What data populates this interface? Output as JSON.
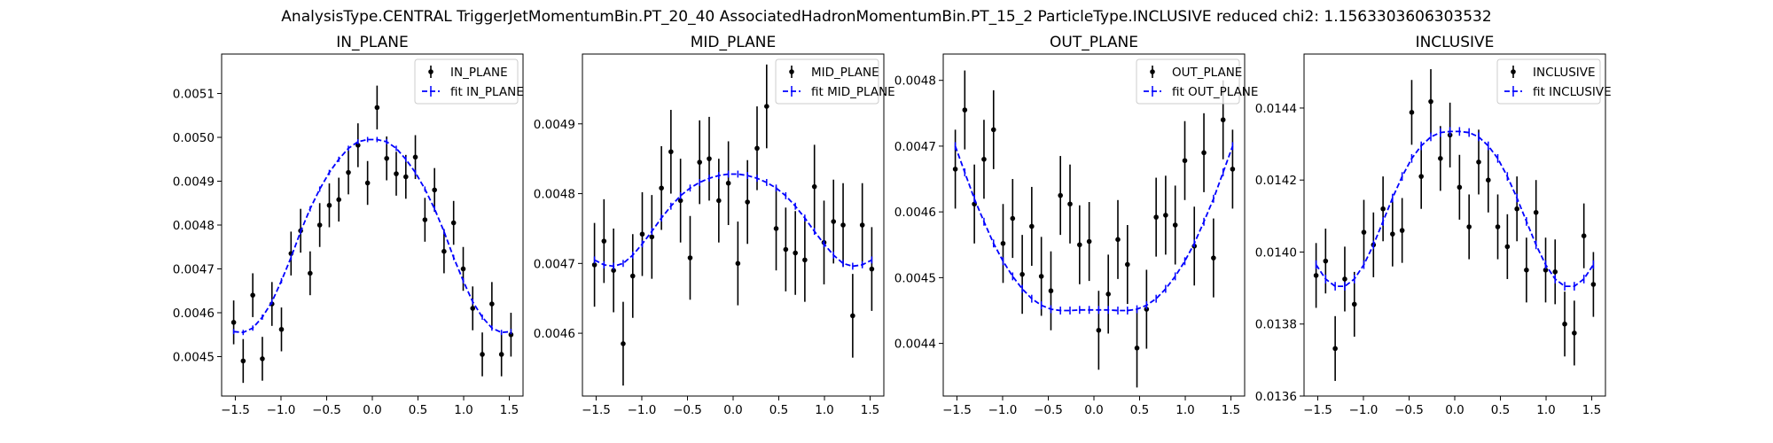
{
  "figure_title": "AnalysisType.CENTRAL TriggerJetMomentumBin.PT_20_40 AssociatedHadronMomentumBin.PT_15_2 ParticleType.INCLUSIVE reduced chi2: 1.1563303606303532",
  "colors": {
    "data": "#000000",
    "fit": "#0000ff"
  },
  "chart_data": [
    {
      "type": "scatter",
      "title": "IN_PLANE",
      "xlabel": "",
      "ylabel": "",
      "xlim": [
        -1.65,
        1.65
      ],
      "ylim": [
        0.00441,
        0.00519
      ],
      "xticks": [
        -1.5,
        -1.0,
        -0.5,
        0.0,
        0.5,
        1.0,
        1.5
      ],
      "xtick_labels": [
        "−1.5",
        "−1.0",
        "−0.5",
        "0.0",
        "0.5",
        "1.0",
        "1.5"
      ],
      "yticks": [
        0.0045,
        0.0046,
        0.0047,
        0.0048,
        0.0049,
        0.005,
        0.0051
      ],
      "ytick_labels": [
        "0.0045",
        "0.0046",
        "0.0047",
        "0.0048",
        "0.0049",
        "0.0050",
        "0.0051"
      ],
      "legend": "top-right",
      "series": [
        {
          "name": "IN_PLANE",
          "kind": "data",
          "x": [
            -1.518,
            -1.414,
            -1.309,
            -1.204,
            -1.099,
            -0.995,
            -0.89,
            -0.785,
            -0.681,
            -0.576,
            -0.471,
            -0.367,
            -0.262,
            -0.157,
            -0.052,
            0.052,
            0.157,
            0.262,
            0.367,
            0.471,
            0.576,
            0.681,
            0.785,
            0.89,
            0.995,
            1.099,
            1.204,
            1.309,
            1.414,
            1.518
          ],
          "y": [
            0.004578,
            0.00449,
            0.00464,
            0.004495,
            0.00462,
            0.004562,
            0.004735,
            0.004787,
            0.00469,
            0.0048,
            0.004845,
            0.004858,
            0.00492,
            0.004982,
            0.004896,
            0.005068,
            0.004952,
            0.004917,
            0.00491,
            0.004955,
            0.004812,
            0.00488,
            0.00474,
            0.004805,
            0.0047,
            0.00461,
            0.004505,
            0.00462,
            0.004505,
            0.00455
          ],
          "yerr": [
            5e-05,
            5e-05,
            5e-05,
            5e-05,
            5e-05,
            5e-05,
            5e-05,
            5e-05,
            5e-05,
            5e-05,
            5e-05,
            5e-05,
            5e-05,
            5e-05,
            5e-05,
            5e-05,
            5e-05,
            5e-05,
            5e-05,
            5e-05,
            5e-05,
            5e-05,
            5e-05,
            5e-05,
            5e-05,
            5e-05,
            5e-05,
            5e-05,
            5e-05,
            5e-05
          ]
        },
        {
          "name": "fit IN_PLANE",
          "kind": "fit",
          "x": [
            -1.518,
            -1.414,
            -1.309,
            -1.204,
            -1.099,
            -0.995,
            -0.89,
            -0.785,
            -0.681,
            -0.576,
            -0.471,
            -0.367,
            -0.262,
            -0.157,
            -0.052,
            0.052,
            0.157,
            0.262,
            0.367,
            0.471,
            0.576,
            0.681,
            0.785,
            0.89,
            0.995,
            1.099,
            1.204,
            1.309,
            1.414,
            1.518
          ],
          "y": [
            0.004557,
            0.004555,
            0.004565,
            0.00459,
            0.004625,
            0.004673,
            0.004726,
            0.004785,
            0.004837,
            0.004882,
            0.00492,
            0.00495,
            0.004975,
            0.00499,
            0.004995,
            0.004995,
            0.00499,
            0.004975,
            0.00495,
            0.00492,
            0.004882,
            0.004837,
            0.004785,
            0.004726,
            0.004673,
            0.004625,
            0.00459,
            0.004565,
            0.004555,
            0.004557
          ],
          "yerr": [
            6e-06,
            6e-06,
            6e-06,
            6e-06,
            6e-06,
            6e-06,
            6e-06,
            6e-06,
            6e-06,
            6e-06,
            6e-06,
            6e-06,
            6e-06,
            6e-06,
            6e-06,
            6e-06,
            6e-06,
            6e-06,
            6e-06,
            6e-06,
            6e-06,
            6e-06,
            6e-06,
            6e-06,
            6e-06,
            6e-06,
            6e-06,
            6e-06,
            6e-06,
            6e-06
          ]
        }
      ]
    },
    {
      "type": "scatter",
      "title": "MID_PLANE",
      "xlabel": "",
      "ylabel": "",
      "xlim": [
        -1.65,
        1.65
      ],
      "ylim": [
        0.00451,
        0.005
      ],
      "xticks": [
        -1.5,
        -1.0,
        -0.5,
        0.0,
        0.5,
        1.0,
        1.5
      ],
      "xtick_labels": [
        "−1.5",
        "−1.0",
        "−0.5",
        "0.0",
        "0.5",
        "1.0",
        "1.5"
      ],
      "yticks": [
        0.0046,
        0.0047,
        0.0048,
        0.0049
      ],
      "ytick_labels": [
        "0.0046",
        "0.0047",
        "0.0048",
        "0.0049"
      ],
      "legend": "top-right",
      "series": [
        {
          "name": "MID_PLANE",
          "kind": "data",
          "x": [
            -1.518,
            -1.414,
            -1.309,
            -1.204,
            -1.099,
            -0.995,
            -0.89,
            -0.785,
            -0.681,
            -0.576,
            -0.471,
            -0.367,
            -0.262,
            -0.157,
            -0.052,
            0.052,
            0.157,
            0.262,
            0.367,
            0.471,
            0.576,
            0.681,
            0.785,
            0.89,
            0.995,
            1.099,
            1.204,
            1.309,
            1.414,
            1.518
          ],
          "y": [
            0.004698,
            0.004732,
            0.00469,
            0.004585,
            0.004682,
            0.004742,
            0.004738,
            0.004808,
            0.00486,
            0.00479,
            0.004708,
            0.004845,
            0.00485,
            0.00479,
            0.004815,
            0.0047,
            0.004788,
            0.004865,
            0.004925,
            0.00475,
            0.00472,
            0.004715,
            0.004705,
            0.00481,
            0.00473,
            0.00476,
            0.004755,
            0.004625,
            0.004755,
            0.004692
          ],
          "yerr": [
            6e-05,
            6e-05,
            6e-05,
            6e-05,
            6e-05,
            6e-05,
            6e-05,
            6e-05,
            6e-05,
            6e-05,
            6e-05,
            6e-05,
            6e-05,
            6e-05,
            6e-05,
            6e-05,
            6e-05,
            6e-05,
            6e-05,
            6e-05,
            6e-05,
            6e-05,
            6e-05,
            6e-05,
            6e-05,
            6e-05,
            6e-05,
            6e-05,
            6e-05,
            6e-05
          ]
        },
        {
          "name": "fit MID_PLANE",
          "kind": "fit",
          "x": [
            -1.518,
            -1.414,
            -1.309,
            -1.204,
            -1.099,
            -0.995,
            -0.89,
            -0.785,
            -0.681,
            -0.576,
            -0.471,
            -0.367,
            -0.262,
            -0.157,
            -0.052,
            0.052,
            0.157,
            0.262,
            0.367,
            0.471,
            0.576,
            0.681,
            0.785,
            0.89,
            0.995,
            1.099,
            1.204,
            1.309,
            1.414,
            1.518
          ],
          "y": [
            0.004705,
            0.004698,
            0.004696,
            0.0047,
            0.004712,
            0.004728,
            0.004746,
            0.004765,
            0.004782,
            0.004797,
            0.004808,
            0.004816,
            0.004822,
            0.004826,
            0.004828,
            0.004828,
            0.004826,
            0.004822,
            0.004816,
            0.004808,
            0.004797,
            0.004782,
            0.004765,
            0.004746,
            0.004728,
            0.004712,
            0.0047,
            0.004696,
            0.004698,
            0.004705
          ],
          "yerr": [
            5e-06,
            5e-06,
            5e-06,
            5e-06,
            5e-06,
            5e-06,
            5e-06,
            5e-06,
            5e-06,
            5e-06,
            5e-06,
            5e-06,
            5e-06,
            5e-06,
            5e-06,
            5e-06,
            5e-06,
            5e-06,
            5e-06,
            5e-06,
            5e-06,
            5e-06,
            5e-06,
            5e-06,
            5e-06,
            5e-06,
            5e-06,
            5e-06,
            5e-06,
            5e-06
          ]
        }
      ]
    },
    {
      "type": "scatter",
      "title": "OUT_PLANE",
      "xlabel": "",
      "ylabel": "",
      "xlim": [
        -1.65,
        1.65
      ],
      "ylim": [
        0.00432,
        0.00484
      ],
      "xticks": [
        -1.5,
        -1.0,
        -0.5,
        0.0,
        0.5,
        1.0,
        1.5
      ],
      "xtick_labels": [
        "−1.5",
        "−1.0",
        "−0.5",
        "0.0",
        "0.5",
        "1.0",
        "1.5"
      ],
      "yticks": [
        0.0044,
        0.0045,
        0.0046,
        0.0047,
        0.0048
      ],
      "ytick_labels": [
        "0.0044",
        "0.0045",
        "0.0046",
        "0.0047",
        "0.0048"
      ],
      "legend": "top-right",
      "series": [
        {
          "name": "OUT_PLANE",
          "kind": "data",
          "x": [
            -1.518,
            -1.414,
            -1.309,
            -1.204,
            -1.099,
            -0.995,
            -0.89,
            -0.785,
            -0.681,
            -0.576,
            -0.471,
            -0.367,
            -0.262,
            -0.157,
            -0.052,
            0.052,
            0.157,
            0.262,
            0.367,
            0.471,
            0.576,
            0.681,
            0.785,
            0.89,
            0.995,
            1.099,
            1.204,
            1.309,
            1.414,
            1.518
          ],
          "y": [
            0.004665,
            0.004755,
            0.004612,
            0.00468,
            0.004725,
            0.004552,
            0.00459,
            0.004505,
            0.004578,
            0.004502,
            0.00448,
            0.004625,
            0.004612,
            0.00455,
            0.004555,
            0.00442,
            0.004475,
            0.004558,
            0.00452,
            0.004393,
            0.004452,
            0.004592,
            0.004595,
            0.00458,
            0.004678,
            0.004548,
            0.00469,
            0.00453,
            0.00474,
            0.004665
          ],
          "yerr": [
            6e-05,
            6e-05,
            6e-05,
            6e-05,
            6e-05,
            6e-05,
            6e-05,
            6e-05,
            6e-05,
            6e-05,
            6e-05,
            6e-05,
            6e-05,
            6e-05,
            6e-05,
            6e-05,
            6e-05,
            6e-05,
            6e-05,
            6e-05,
            6e-05,
            6e-05,
            6e-05,
            6e-05,
            6e-05,
            6e-05,
            6e-05,
            6e-05,
            6e-05,
            6e-05
          ]
        },
        {
          "name": "fit OUT_PLANE",
          "kind": "fit",
          "x": [
            -1.518,
            -1.414,
            -1.309,
            -1.204,
            -1.099,
            -0.995,
            -0.89,
            -0.785,
            -0.681,
            -0.576,
            -0.471,
            -0.367,
            -0.262,
            -0.157,
            -0.052,
            0.052,
            0.157,
            0.262,
            0.367,
            0.471,
            0.576,
            0.681,
            0.785,
            0.89,
            0.995,
            1.099,
            1.204,
            1.309,
            1.414,
            1.518
          ],
          "y": [
            0.0047,
            0.00466,
            0.00462,
            0.004585,
            0.004552,
            0.004525,
            0.004502,
            0.004483,
            0.004468,
            0.004458,
            0.004452,
            0.00445,
            0.00445,
            0.004451,
            0.004451,
            0.004451,
            0.004451,
            0.00445,
            0.00445,
            0.004452,
            0.004458,
            0.004468,
            0.004483,
            0.004502,
            0.004525,
            0.004552,
            0.004585,
            0.00462,
            0.00466,
            0.0047
          ],
          "yerr": [
            6e-06,
            6e-06,
            6e-06,
            6e-06,
            6e-06,
            6e-06,
            6e-06,
            6e-06,
            6e-06,
            6e-06,
            6e-06,
            6e-06,
            6e-06,
            6e-06,
            6e-06,
            6e-06,
            6e-06,
            6e-06,
            6e-06,
            6e-06,
            6e-06,
            6e-06,
            6e-06,
            6e-06,
            6e-06,
            6e-06,
            6e-06,
            6e-06,
            6e-06,
            6e-06
          ]
        }
      ]
    },
    {
      "type": "scatter",
      "title": "INCLUSIVE",
      "xlabel": "",
      "ylabel": "",
      "xlim": [
        -1.65,
        1.65
      ],
      "ylim": [
        0.0136,
        0.01455
      ],
      "xticks": [
        -1.5,
        -1.0,
        -0.5,
        0.0,
        0.5,
        1.0,
        1.5
      ],
      "xtick_labels": [
        "−1.5",
        "−1.0",
        "−0.5",
        "0.0",
        "0.5",
        "1.0",
        "1.5"
      ],
      "yticks": [
        0.0136,
        0.0138,
        0.014,
        0.0142,
        0.0144
      ],
      "ytick_labels": [
        "0.0136",
        "0.0138",
        "0.0140",
        "0.0142",
        "0.0144"
      ],
      "legend": "top-right",
      "series": [
        {
          "name": "INCLUSIVE",
          "kind": "data",
          "x": [
            -1.518,
            -1.414,
            -1.309,
            -1.204,
            -1.099,
            -0.995,
            -0.89,
            -0.785,
            -0.681,
            -0.576,
            -0.471,
            -0.367,
            -0.262,
            -0.157,
            -0.052,
            0.052,
            0.157,
            0.262,
            0.367,
            0.471,
            0.576,
            0.681,
            0.785,
            0.89,
            0.995,
            1.099,
            1.204,
            1.309,
            1.414,
            1.518
          ],
          "y": [
            0.013935,
            0.013975,
            0.013732,
            0.013925,
            0.013855,
            0.014055,
            0.01402,
            0.01412,
            0.01405,
            0.01406,
            0.014388,
            0.01421,
            0.014418,
            0.01426,
            0.014325,
            0.01418,
            0.01407,
            0.01425,
            0.0142,
            0.01407,
            0.014015,
            0.01412,
            0.01395,
            0.01411,
            0.01395,
            0.013945,
            0.0138,
            0.013775,
            0.014045,
            0.01391
          ],
          "yerr": [
            9e-05,
            9e-05,
            9e-05,
            9e-05,
            9e-05,
            9e-05,
            9e-05,
            9e-05,
            9e-05,
            9e-05,
            9e-05,
            9e-05,
            9e-05,
            9e-05,
            9e-05,
            9e-05,
            9e-05,
            9e-05,
            9e-05,
            9e-05,
            9e-05,
            9e-05,
            9e-05,
            9e-05,
            9e-05,
            9e-05,
            9e-05,
            9e-05,
            9e-05,
            9e-05
          ]
        },
        {
          "name": "fit INCLUSIVE",
          "kind": "fit",
          "x": [
            -1.518,
            -1.414,
            -1.309,
            -1.204,
            -1.099,
            -0.995,
            -0.89,
            -0.785,
            -0.681,
            -0.576,
            -0.471,
            -0.367,
            -0.262,
            -0.157,
            -0.052,
            0.052,
            0.157,
            0.262,
            0.367,
            0.471,
            0.576,
            0.681,
            0.785,
            0.89,
            0.995,
            1.099,
            1.204,
            1.309,
            1.414,
            1.518
          ],
          "y": [
            0.013965,
            0.013925,
            0.013905,
            0.013905,
            0.013925,
            0.013965,
            0.01402,
            0.014085,
            0.01415,
            0.01421,
            0.01426,
            0.014295,
            0.01432,
            0.014332,
            0.014335,
            0.014335,
            0.014332,
            0.01432,
            0.014295,
            0.01426,
            0.01421,
            0.01415,
            0.014085,
            0.01402,
            0.013965,
            0.013925,
            0.013905,
            0.013905,
            0.013925,
            0.013965
          ],
          "yerr": [
            1.2e-05,
            1.2e-05,
            1.2e-05,
            1.2e-05,
            1.2e-05,
            1.2e-05,
            1.2e-05,
            1.2e-05,
            1.2e-05,
            1.2e-05,
            1.2e-05,
            1.2e-05,
            1.2e-05,
            1.2e-05,
            1.2e-05,
            1.2e-05,
            1.2e-05,
            1.2e-05,
            1.2e-05,
            1.2e-05,
            1.2e-05,
            1.2e-05,
            1.2e-05,
            1.2e-05,
            1.2e-05,
            1.2e-05,
            1.2e-05,
            1.2e-05,
            1.2e-05,
            1.2e-05
          ]
        }
      ]
    }
  ]
}
